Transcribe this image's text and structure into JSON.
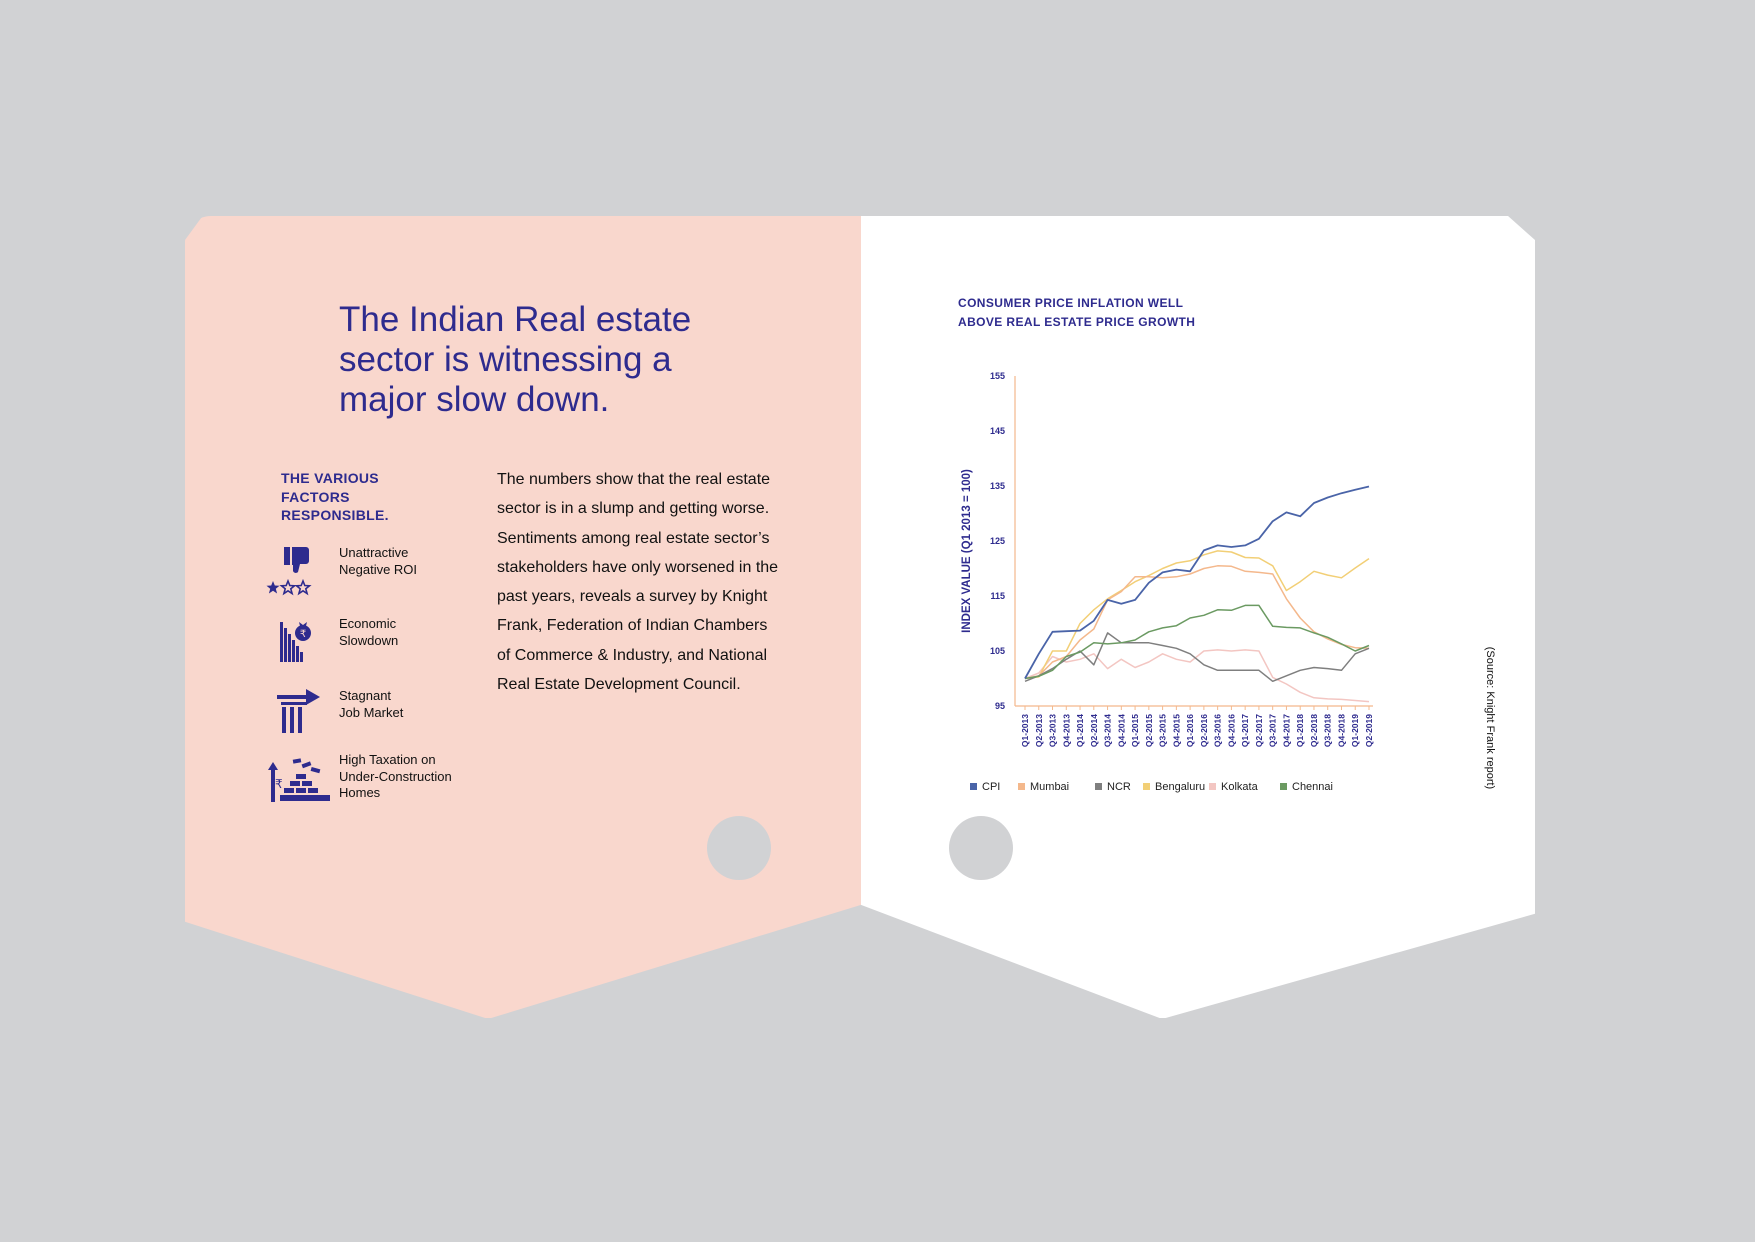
{
  "left": {
    "headline": "The Indian Real estate sector is witnessing a major slow down.",
    "factors_heading": "THE VARIOUS FACTORS RESPONSIBLE.",
    "factors": [
      {
        "label": "Unattractive\nNegative ROI",
        "icon": "thumbs-down-stars-icon"
      },
      {
        "label": "Economic\nSlowdown",
        "icon": "rupee-bag-decline-icon"
      },
      {
        "label": "Stagnant\nJob Market",
        "icon": "pillar-arrow-icon"
      },
      {
        "label": "High Taxation on\nUnder-Construction\nHomes",
        "icon": "rupee-bricks-icon"
      }
    ],
    "body": "The numbers show that the real estate sector is in a slump and getting worse. Sentiments among real estate sector’s stakeholders have only worsened in the past years, reveals a survey by Knight Frank, Federation of Indian Chambers of Commerce & Industry, and National Real Estate Development Council."
  },
  "right": {
    "chart_title": "CONSUMER PRICE INFLATION WELL ABOVE REAL ESTATE PRICE GROWTH",
    "source": "(Source: Knight Frank report)"
  },
  "colors": {
    "brand": "#2e2b8e",
    "left_bg": "#f9d7cd",
    "page_bg": "#d1d2d4"
  },
  "chart_data": {
    "type": "line",
    "title": "CONSUMER PRICE INFLATION WELL ABOVE REAL ESTATE PRICE GROWTH",
    "xlabel": "",
    "ylabel": "INDEX VALUE (Q1 2013 = 100)",
    "ylim": [
      95,
      155
    ],
    "yticks": [
      95,
      105,
      115,
      125,
      135,
      145,
      155
    ],
    "categories": [
      "Q1-2013",
      "Q2-2013",
      "Q3-2013",
      "Q4-2013",
      "Q1-2014",
      "Q2-2014",
      "Q3-2014",
      "Q4-2014",
      "Q1-2015",
      "Q2-2015",
      "Q3-2015",
      "Q4-2015",
      "Q1-2016",
      "Q2-2016",
      "Q3-2016",
      "Q4-2016",
      "Q1-2017",
      "Q2-2017",
      "Q3-2017",
      "Q4-2017",
      "Q1-2018",
      "Q2-2018",
      "Q3-2018",
      "Q4-2018",
      "Q1-2019",
      "Q2-2019"
    ],
    "legend_position": "bottom",
    "series": [
      {
        "name": "CPI",
        "color": "#4a64a8",
        "values": [
          100,
          104.5,
          108.5,
          108.6,
          108.7,
          110.5,
          114.3,
          113.6,
          114.3,
          117.4,
          119.3,
          119.8,
          119.5,
          123.3,
          124.2,
          123.9,
          124.2,
          125.4,
          128.6,
          130.2,
          129.5,
          131.9,
          132.9,
          133.7,
          134.3,
          134.9
        ]
      },
      {
        "name": "Mumbai",
        "color": "#f4b88c",
        "values": [
          100,
          100.5,
          103,
          104,
          107,
          109,
          114.3,
          115.8,
          118.5,
          118.5,
          118.3,
          118.5,
          119,
          120,
          120.5,
          120.4,
          119.5,
          119.3,
          119,
          114.5,
          111,
          108.5,
          107.2,
          106.2,
          105.6,
          105.5
        ]
      },
      {
        "name": "NCR",
        "color": "#7f7f7f",
        "values": [
          99.5,
          100.5,
          101.8,
          103.5,
          105,
          102.5,
          108.3,
          106.5,
          106.5,
          106.5,
          106,
          105.5,
          104.5,
          102.5,
          101.5,
          101.5,
          101.5,
          101.5,
          99.5,
          100.5,
          101.5,
          102,
          101.8,
          101.5,
          104.5,
          105.5
        ]
      },
      {
        "name": "Bengaluru",
        "color": "#f2cf76",
        "values": [
          100,
          100.3,
          105,
          105,
          110,
          112.5,
          114.5,
          116,
          117.6,
          118.7,
          120,
          121,
          121.4,
          122.5,
          123.2,
          123,
          122,
          121.9,
          120.5,
          116,
          117.6,
          119.5,
          118.8,
          118.3,
          120.1,
          121.8
        ]
      },
      {
        "name": "Kolkata",
        "color": "#f3c6c2",
        "values": [
          100,
          101,
          104,
          103,
          103.5,
          104.5,
          101.8,
          103.5,
          102,
          103,
          104.5,
          103.5,
          103,
          105,
          105.2,
          105,
          105.2,
          105,
          100.2,
          99,
          97.5,
          96.5,
          96.3,
          96.2,
          96,
          95.8
        ]
      },
      {
        "name": "Chennai",
        "color": "#6b9a62",
        "values": [
          100,
          100.4,
          101.5,
          104,
          104.8,
          106.5,
          106.3,
          106.5,
          107,
          108.5,
          109.2,
          109.6,
          111,
          111.5,
          112.5,
          112.4,
          113.3,
          113.3,
          109.5,
          109.3,
          109.2,
          108.3,
          107.5,
          106.3,
          105,
          106
        ]
      }
    ]
  }
}
